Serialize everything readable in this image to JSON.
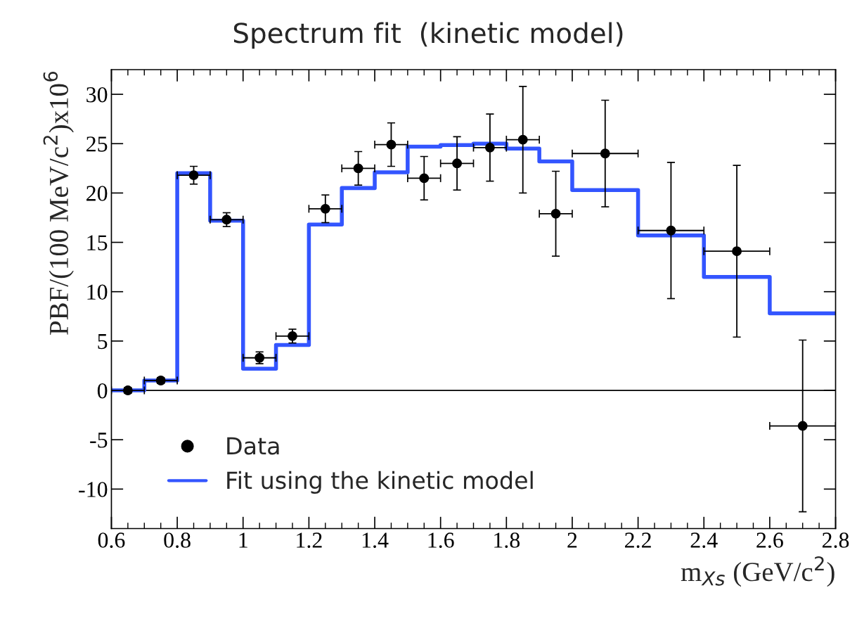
{
  "chart_data": {
    "type": "scatter",
    "title": "Spectrum fit  (kinetic model)",
    "xlabel": "m$_{Xs}$ (GeV/c$^{2}$)",
    "ylabel": "PBF/(100 MeV/c$^{2}$)x10$^{6}$",
    "xlim": [
      0.6,
      2.8
    ],
    "xticks": [
      0.6,
      0.8,
      1,
      1.2,
      1.4,
      1.6,
      1.8,
      2,
      2.2,
      2.4,
      2.6,
      2.8
    ],
    "ylim": [
      -14,
      32.5
    ],
    "yticks": [
      {
        "value": -10,
        "label": "-10"
      },
      {
        "value": -5,
        "label": "-5"
      },
      0,
      5,
      10,
      15,
      20,
      25,
      30
    ],
    "legend": "bottom left",
    "grid": false,
    "ref_lines": [
      {
        "axis": "y",
        "value": 0,
        "color": "#000000"
      }
    ],
    "series": [
      {
        "name": "Data",
        "color": "#000000",
        "marker": "circle",
        "x": [
          0.65,
          0.75,
          0.85,
          0.95,
          1.05,
          1.15,
          1.25,
          1.35,
          1.45,
          1.55,
          1.65,
          1.75,
          1.85,
          1.95,
          2.1,
          2.3,
          2.5,
          2.7
        ],
        "values": [
          0,
          1.0,
          21.8,
          17.3,
          3.3,
          5.5,
          18.4,
          22.5,
          24.9,
          21.5,
          23.0,
          24.6,
          25.4,
          17.9,
          24.0,
          16.2,
          14.1,
          -3.6
        ],
        "errors": [
          0.3,
          0.3,
          0.9,
          0.7,
          0.6,
          0.7,
          1.4,
          1.7,
          2.2,
          2.2,
          2.7,
          3.4,
          5.4,
          4.3,
          5.4,
          6.9,
          8.7,
          8.7
        ],
        "xerrors": [
          0.05,
          0.05,
          0.05,
          0.05,
          0.05,
          0.05,
          0.05,
          0.05,
          0.05,
          0.05,
          0.05,
          0.05,
          0.05,
          0.05,
          0.1,
          0.1,
          0.1,
          0.1
        ]
      },
      {
        "name": "Fit using the kinetic model",
        "type": "step",
        "color": "#3355ff",
        "x": [
          0.6,
          0.7,
          0.8,
          0.9,
          1.0,
          1.1,
          1.2,
          1.3,
          1.4,
          1.5,
          1.6,
          1.7,
          1.8,
          1.9,
          2.0,
          2.2,
          2.4,
          2.6,
          2.8
        ],
        "values": [
          0,
          1.0,
          22.0,
          17.2,
          2.2,
          4.6,
          16.8,
          20.5,
          22.1,
          24.7,
          24.85,
          25.0,
          24.5,
          23.2,
          20.3,
          15.7,
          11.5,
          7.8,
          7.8
        ]
      }
    ]
  }
}
